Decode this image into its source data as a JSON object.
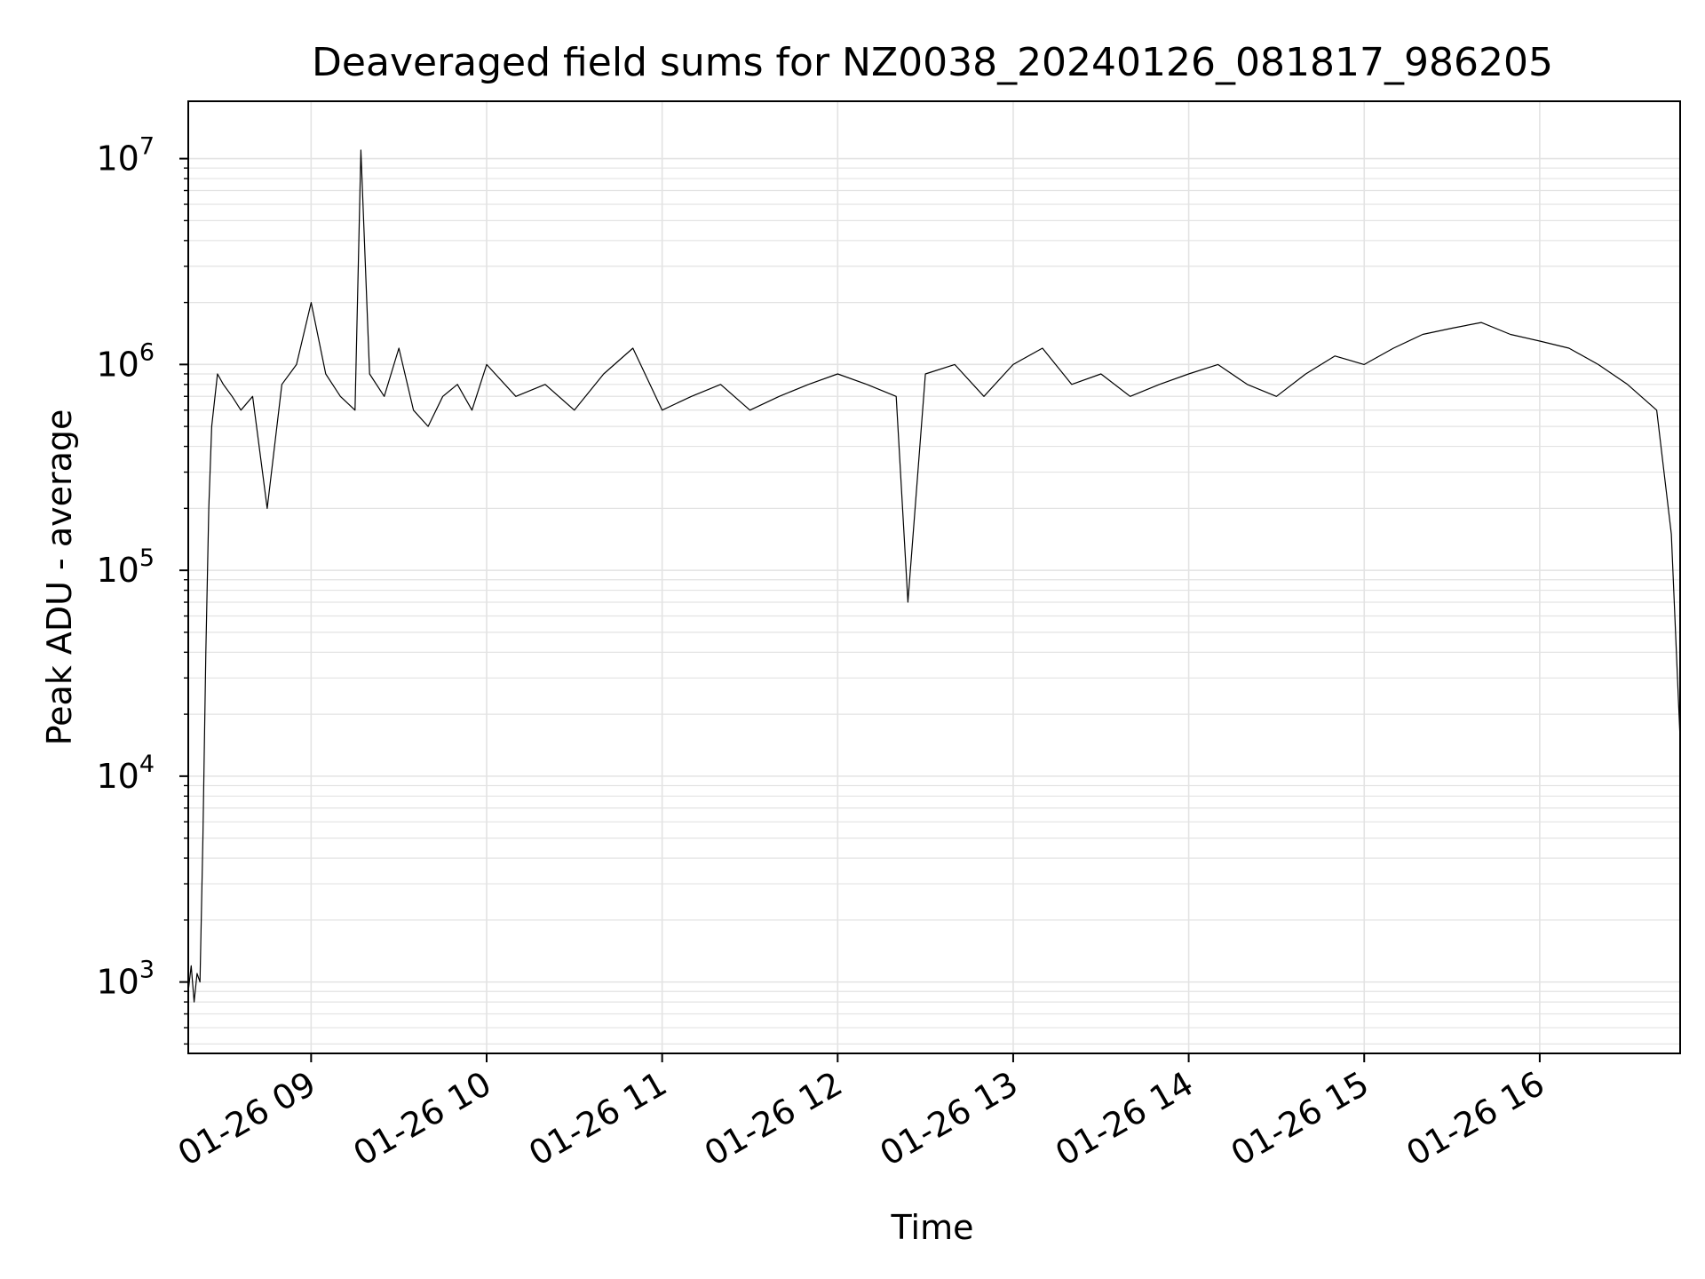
{
  "chart_data": {
    "type": "line",
    "title": "Deaveraged field sums for NZ0038_20240126_081817_986205",
    "xlabel": "Time",
    "ylabel": "Peak ADU - average",
    "yscale": "log",
    "ylim": [
      450,
      19000000
    ],
    "xlim": [
      "2024-01-26 08:18",
      "2024-01-26 16:48"
    ],
    "grid": true,
    "x_ticks": [
      {
        "value": "2024-01-26 09:00",
        "label": "01-26 09"
      },
      {
        "value": "2024-01-26 10:00",
        "label": "01-26 10"
      },
      {
        "value": "2024-01-26 11:00",
        "label": "01-26 11"
      },
      {
        "value": "2024-01-26 12:00",
        "label": "01-26 12"
      },
      {
        "value": "2024-01-26 13:00",
        "label": "01-26 13"
      },
      {
        "value": "2024-01-26 14:00",
        "label": "01-26 14"
      },
      {
        "value": "2024-01-26 15:00",
        "label": "01-26 15"
      },
      {
        "value": "2024-01-26 16:00",
        "label": "01-26 16"
      }
    ],
    "y_ticks": [
      {
        "value": 1000,
        "base": "10",
        "exp": "3"
      },
      {
        "value": 10000,
        "base": "10",
        "exp": "4"
      },
      {
        "value": 100000,
        "base": "10",
        "exp": "5"
      },
      {
        "value": 1000000,
        "base": "10",
        "exp": "6"
      },
      {
        "value": 10000000,
        "base": "10",
        "exp": "7"
      }
    ],
    "series": [
      {
        "color": "#000000",
        "x": [
          "2024-01-26 08:18",
          "2024-01-26 08:19",
          "2024-01-26 08:20",
          "2024-01-26 08:21",
          "2024-01-26 08:22",
          "2024-01-26 08:23",
          "2024-01-26 08:24",
          "2024-01-26 08:25",
          "2024-01-26 08:26",
          "2024-01-26 08:28",
          "2024-01-26 08:30",
          "2024-01-26 08:33",
          "2024-01-26 08:36",
          "2024-01-26 08:40",
          "2024-01-26 08:45",
          "2024-01-26 08:50",
          "2024-01-26 08:55",
          "2024-01-26 09:00",
          "2024-01-26 09:05",
          "2024-01-26 09:10",
          "2024-01-26 09:15",
          "2024-01-26 09:17",
          "2024-01-26 09:20",
          "2024-01-26 09:25",
          "2024-01-26 09:30",
          "2024-01-26 09:35",
          "2024-01-26 09:40",
          "2024-01-26 09:45",
          "2024-01-26 09:50",
          "2024-01-26 09:55",
          "2024-01-26 10:00",
          "2024-01-26 10:10",
          "2024-01-26 10:20",
          "2024-01-26 10:30",
          "2024-01-26 10:40",
          "2024-01-26 10:50",
          "2024-01-26 11:00",
          "2024-01-26 11:10",
          "2024-01-26 11:20",
          "2024-01-26 11:30",
          "2024-01-26 11:40",
          "2024-01-26 11:50",
          "2024-01-26 12:00",
          "2024-01-26 12:10",
          "2024-01-26 12:20",
          "2024-01-26 12:24",
          "2024-01-26 12:30",
          "2024-01-26 12:40",
          "2024-01-26 12:50",
          "2024-01-26 13:00",
          "2024-01-26 13:10",
          "2024-01-26 13:20",
          "2024-01-26 13:30",
          "2024-01-26 13:40",
          "2024-01-26 13:50",
          "2024-01-26 14:00",
          "2024-01-26 14:10",
          "2024-01-26 14:20",
          "2024-01-26 14:30",
          "2024-01-26 14:40",
          "2024-01-26 14:50",
          "2024-01-26 15:00",
          "2024-01-26 15:10",
          "2024-01-26 15:20",
          "2024-01-26 15:30",
          "2024-01-26 15:40",
          "2024-01-26 15:50",
          "2024-01-26 16:00",
          "2024-01-26 16:10",
          "2024-01-26 16:20",
          "2024-01-26 16:30",
          "2024-01-26 16:40",
          "2024-01-26 16:45",
          "2024-01-26 16:48"
        ],
        "y": [
          900,
          1200,
          800,
          1100,
          1000,
          5000,
          40000,
          200000,
          500000,
          900000,
          800000,
          700000,
          600000,
          700000,
          200000,
          800000,
          1000000,
          2000000,
          900000,
          700000,
          600000,
          11000000,
          900000,
          700000,
          1200000,
          600000,
          500000,
          700000,
          800000,
          600000,
          1000000,
          700000,
          800000,
          600000,
          900000,
          1200000,
          600000,
          700000,
          800000,
          600000,
          700000,
          800000,
          900000,
          800000,
          700000,
          70000,
          900000,
          1000000,
          700000,
          1000000,
          1200000,
          800000,
          900000,
          700000,
          800000,
          900000,
          1000000,
          800000,
          700000,
          900000,
          1100000,
          1000000,
          1200000,
          1400000,
          1500000,
          1600000,
          1400000,
          1300000,
          1200000,
          1000000,
          800000,
          600000,
          150000,
          15000
        ]
      }
    ]
  }
}
